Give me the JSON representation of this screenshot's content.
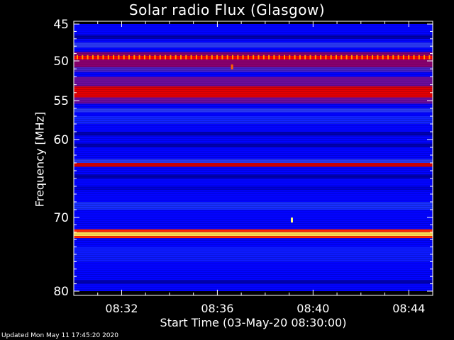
{
  "chart_data": {
    "type": "heatmap",
    "title": "Solar radio Flux (Glasgow)",
    "xlabel": "Start Time (03-May-20 08:30:00)",
    "ylabel": "Frequency [MHz]",
    "x_ticks": [
      "08:32",
      "08:36",
      "08:40",
      "08:44"
    ],
    "x_tick_minutes": [
      2,
      6,
      10,
      14
    ],
    "x_range_minutes": [
      0,
      15
    ],
    "y_ticks": [
      45,
      50,
      55,
      60,
      70,
      80
    ],
    "y_range": [
      45,
      80
    ],
    "colormap": [
      "#000080",
      "#0000ff",
      "#2040ff",
      "#800080",
      "#c00000",
      "#ff0000",
      "#ffa000",
      "#ffff80"
    ],
    "bands": [
      {
        "from": 45.0,
        "to": 80.0,
        "level": 0.15
      },
      {
        "from": 46.5,
        "to": 47.0,
        "level": 0.05
      },
      {
        "from": 47.5,
        "to": 48.2,
        "level": 0.3
      },
      {
        "from": 48.8,
        "to": 49.3,
        "level": 0.45
      },
      {
        "from": 49.3,
        "to": 49.8,
        "level": 0.7
      },
      {
        "from": 49.8,
        "to": 50.8,
        "level": 0.45
      },
      {
        "from": 50.8,
        "to": 51.4,
        "level": 0.35
      },
      {
        "from": 52.0,
        "to": 53.2,
        "level": 0.4
      },
      {
        "from": 53.2,
        "to": 54.6,
        "level": 0.65
      },
      {
        "from": 54.6,
        "to": 55.4,
        "level": 0.4
      },
      {
        "from": 56.0,
        "to": 56.5,
        "level": 0.3
      },
      {
        "from": 57.0,
        "to": 58.0,
        "level": 0.22
      },
      {
        "from": 59.0,
        "to": 59.5,
        "level": 0.05
      },
      {
        "from": 60.5,
        "to": 61.0,
        "level": 0.05
      },
      {
        "from": 62.5,
        "to": 63.0,
        "level": 0.3
      },
      {
        "from": 63.0,
        "to": 63.5,
        "level": 0.62
      },
      {
        "from": 64.5,
        "to": 65.0,
        "level": 0.05
      },
      {
        "from": 66.0,
        "to": 66.5,
        "level": 0.1
      },
      {
        "from": 68.0,
        "to": 69.0,
        "level": 0.25
      },
      {
        "from": 71.6,
        "to": 72.0,
        "level": 0.75
      },
      {
        "from": 72.0,
        "to": 72.5,
        "level": 0.95
      },
      {
        "from": 72.5,
        "to": 72.8,
        "level": 0.75
      },
      {
        "from": 74.0,
        "to": 76.0,
        "level": 0.2
      },
      {
        "from": 78.5,
        "to": 79.0,
        "level": 0.05
      }
    ],
    "dotted_line": {
      "freq": 49.5,
      "level": 0.85
    },
    "spots": [
      {
        "minute": 6.6,
        "freq": 50.8,
        "level": 0.8
      },
      {
        "minute": 9.1,
        "freq": 70.4,
        "level": 1.0
      }
    ]
  },
  "footer": "Updated Mon May 11 17:45:20 2020"
}
